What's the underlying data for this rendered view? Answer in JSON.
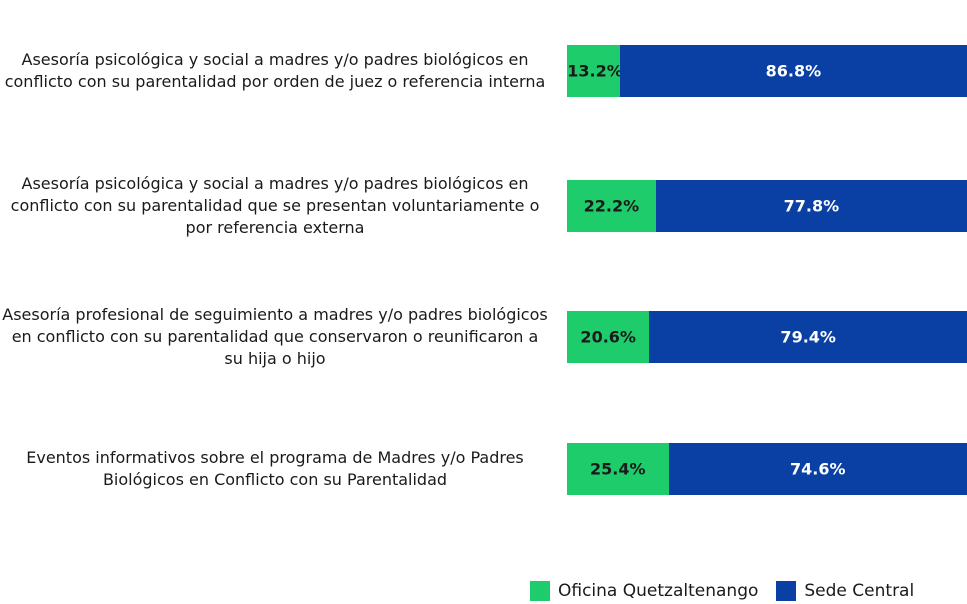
{
  "chart_data": {
    "type": "stacked_bar_horizontal",
    "categories": [
      "Asesoría psicológica y social a madres y/o padres biológicos en conflicto con su parentalidad por orden de juez o referencia interna",
      "Asesoría psicológica y social a madres y/o padres biológicos en conflicto con su parentalidad que se presentan voluntariamente o por referencia externa",
      "Asesoría profesional de seguimiento a madres y/o padres biológicos en conflicto con su parentalidad que conservaron o reunificaron a su hija o hijo",
      "Eventos informativos sobre el programa de Madres y/o Padres Biológicos en Conflicto con su Parentalidad"
    ],
    "series": [
      {
        "name": "Oficina Quetzaltenango",
        "color": "#1fcc6b",
        "label_color": "#1a1a1a",
        "values": [
          13.2,
          22.2,
          20.6,
          25.4
        ],
        "value_labels": [
          "13.2%",
          "22.2%",
          "20.6%",
          "25.4%"
        ]
      },
      {
        "name": "Sede Central",
        "color": "#0a3fa3",
        "label_color": "#ffffff",
        "values": [
          86.8,
          77.8,
          79.4,
          74.6
        ],
        "value_labels": [
          "86.8%",
          "77.8%",
          "79.4%",
          "74.6%"
        ]
      }
    ],
    "xlim": [
      0,
      100
    ],
    "legend": "bottom"
  }
}
